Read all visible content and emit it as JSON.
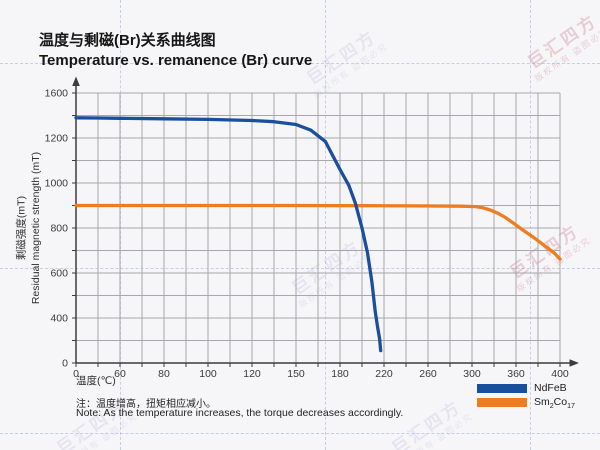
{
  "watermark": {
    "brand": "巨汇四方",
    "claim": "版权所有 盗图必究"
  },
  "notes": {
    "zh": "注：温度增高，扭矩相应减小。",
    "en": "Note: As the temperature increases, the torque decreases accordingly."
  },
  "chart_data": {
    "type": "line",
    "title_zh": "温度与剩磁(Br)关系曲线图",
    "title_en": "Temperature vs. remanence (Br) curve",
    "grid": true,
    "legend_position": "bottom-right",
    "x_axis": {
      "title": "温度(℃)",
      "ticks": [
        0,
        60,
        80,
        100,
        120,
        150,
        180,
        220,
        260,
        300,
        360,
        400
      ],
      "uniform_tick_spacing": true
    },
    "y_axis": {
      "title_zh": "剩磁强度(mT)",
      "title_en": "Residual magnetic strength (mT)",
      "ticks": [
        1600,
        1200,
        1000,
        800,
        600,
        400,
        0
      ],
      "uniform_tick_spacing": true
    },
    "series": [
      {
        "name": "NdFeB",
        "color": "#1a4f9d",
        "points": [
          [
            0,
            1380
          ],
          [
            30,
            1378
          ],
          [
            60,
            1375
          ],
          [
            80,
            1371
          ],
          [
            100,
            1365
          ],
          [
            120,
            1356
          ],
          [
            135,
            1345
          ],
          [
            150,
            1320
          ],
          [
            160,
            1270
          ],
          [
            170,
            1185
          ],
          [
            180,
            1060
          ],
          [
            188,
            990
          ],
          [
            194,
            910
          ],
          [
            200,
            800
          ],
          [
            205,
            690
          ],
          [
            209,
            560
          ],
          [
            212,
            430
          ],
          [
            214,
            330
          ],
          [
            216,
            215
          ],
          [
            217,
            110
          ]
        ]
      },
      {
        "name": "Sm2Co17",
        "color": "#ef7d20",
        "points": [
          [
            0,
            900
          ],
          [
            50,
            900
          ],
          [
            100,
            900
          ],
          [
            150,
            900
          ],
          [
            200,
            899
          ],
          [
            250,
            898
          ],
          [
            290,
            897
          ],
          [
            305,
            895
          ],
          [
            315,
            890
          ],
          [
            325,
            880
          ],
          [
            335,
            866
          ],
          [
            345,
            848
          ],
          [
            355,
            825
          ],
          [
            365,
            795
          ],
          [
            375,
            762
          ],
          [
            385,
            725
          ],
          [
            395,
            688
          ],
          [
            400,
            662
          ]
        ]
      }
    ],
    "legend": [
      {
        "name": "NdFeB",
        "color": "#1a4f9d",
        "label_parts": [
          {
            "t": "NdFeB"
          }
        ]
      },
      {
        "name": "Sm2Co17",
        "color": "#ef7d20",
        "label_parts": [
          {
            "t": "Sm"
          },
          {
            "t": "2",
            "sub": true
          },
          {
            "t": "Co"
          },
          {
            "t": "17",
            "sub": true
          }
        ]
      }
    ]
  }
}
